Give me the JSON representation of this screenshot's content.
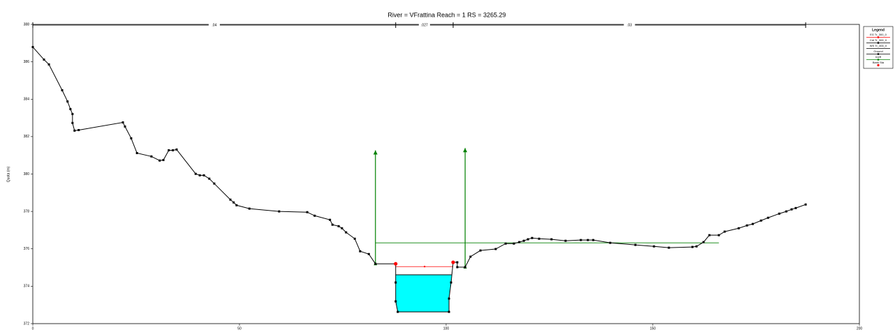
{
  "chart_data": {
    "type": "line",
    "title": "River = VFrattina   Reach = 1       RS = 3265.29",
    "ylabel": "Quota (m)",
    "xlim": [
      0,
      200
    ],
    "ylim": [
      372,
      388
    ],
    "xticks": [
      0,
      50,
      100,
      150,
      200
    ],
    "yticks": [
      372,
      374,
      376,
      378,
      380,
      382,
      384,
      386,
      388
    ],
    "legend_title": "Legend",
    "manning": {
      "labels": [
        ".04",
        ".027",
        ".03"
      ],
      "stations": [
        0,
        87.8,
        101.7,
        187.0
      ]
    },
    "series": [
      {
        "name": "EG Tr_300_0",
        "kind": "line",
        "color": "#ff0000",
        "x": [
          87.8,
          94.8,
          101.7
        ],
        "values": [
          375.05,
          375.05,
          375.05
        ]
      },
      {
        "name": "Crit Tr_300_0",
        "kind": "line",
        "color": "#000000",
        "x": [
          87.8,
          101.3
        ],
        "values": [
          374.61,
          374.61
        ]
      },
      {
        "name": "WS Tr_300_0",
        "kind": "area",
        "color": "#00ffff",
        "x": [
          87.8,
          101.3
        ],
        "values": [
          374.61,
          374.61
        ]
      },
      {
        "name": "Ground",
        "kind": "ground",
        "color": "#000000",
        "x": [
          0,
          2.7,
          3.9,
          7.1,
          8.4,
          9.1,
          9.6,
          9.6,
          10.1,
          11.1,
          21.8,
          22.3,
          23.8,
          25.2,
          28.7,
          30.7,
          31.6,
          32.9,
          33.9,
          34.8,
          39.4,
          40.4,
          41.4,
          42.7,
          43.9,
          47.8,
          48.6,
          49.3,
          52.4,
          59.6,
          66.4,
          68.2,
          71.9,
          72.5,
          74.0,
          74.8,
          75.8,
          77.9,
          79.2,
          81.3,
          82.9,
          87.8,
          87.8,
          87.8,
          88.3,
          100.7,
          100.7,
          101.2,
          101.7,
          102.7,
          102.7,
          104.6,
          105.9,
          108.3,
          112.0,
          114.4,
          116.4,
          117.7,
          118.8,
          119.8,
          120.8,
          122.5,
          125.5,
          128.9,
          132.6,
          134.3,
          135.6,
          139.7,
          145.8,
          150.3,
          153.9,
          159.6,
          160.6,
          162.3,
          163.7,
          166.0,
          167.4,
          170.8,
          172.8,
          174.2,
          176.2,
          177.9,
          180.6,
          182.3,
          183.6,
          184.6,
          187.0
        ],
        "values": [
          386.79,
          386.12,
          385.86,
          384.48,
          383.88,
          383.47,
          383.21,
          382.73,
          382.32,
          382.35,
          382.76,
          382.54,
          381.91,
          381.12,
          380.94,
          380.72,
          380.75,
          381.27,
          381.27,
          381.31,
          380.01,
          379.93,
          379.93,
          379.75,
          379.49,
          378.63,
          378.48,
          378.33,
          378.15,
          378.0,
          377.96,
          377.77,
          377.55,
          377.29,
          377.21,
          377.1,
          376.88,
          376.54,
          375.87,
          375.72,
          375.2,
          375.2,
          374.2,
          373.19,
          372.63,
          372.63,
          373.34,
          374.2,
          375.28,
          375.28,
          375.02,
          375.02,
          375.58,
          375.91,
          375.99,
          376.28,
          376.28,
          376.36,
          376.43,
          376.51,
          376.58,
          376.54,
          376.51,
          376.43,
          376.47,
          376.47,
          376.47,
          376.32,
          376.21,
          376.13,
          376.06,
          376.1,
          376.13,
          376.36,
          376.73,
          376.73,
          376.92,
          377.1,
          377.25,
          377.33,
          377.51,
          377.66,
          377.88,
          378.0,
          378.11,
          378.18,
          378.37
        ]
      },
      {
        "name": "Ineff",
        "kind": "arrow",
        "color": "#008000",
        "x": [
          82.9,
          104.6
        ],
        "values": [
          381.27,
          381.39
        ],
        "level": 376.32,
        "level_x": [
          82.9,
          166.0
        ]
      },
      {
        "name": "Bank Sta",
        "kind": "marker",
        "color": "#ff0000",
        "x": [
          87.8,
          101.7
        ],
        "values": [
          375.2,
          375.28
        ]
      }
    ]
  }
}
